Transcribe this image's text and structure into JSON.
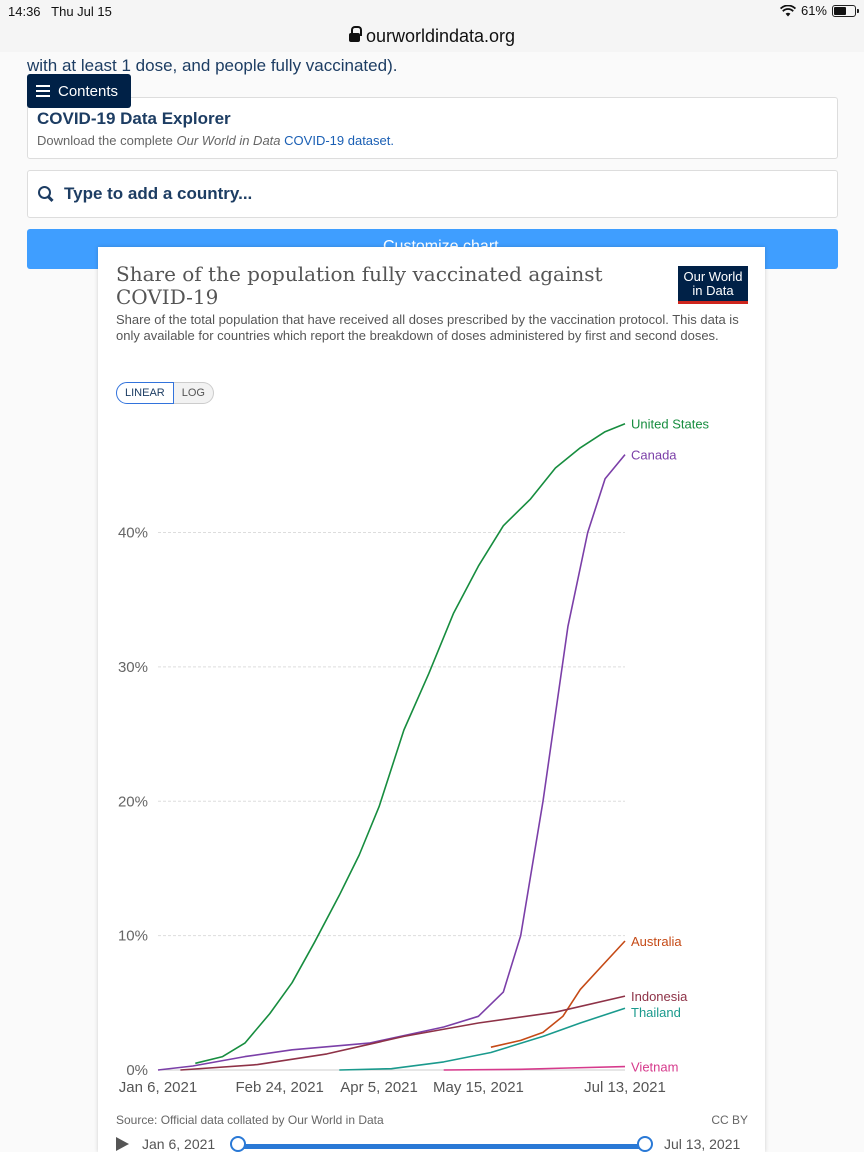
{
  "status_bar": {
    "time": "14:36",
    "date": "Thu Jul 15",
    "battery": "61%",
    "battery_level": 0.61
  },
  "browser": {
    "url": "ourworldindata.org"
  },
  "page": {
    "intro_fragment": "with at least 1 dose, and people fully vaccinated).",
    "contents_label": "Contents",
    "explorer": {
      "title": "COVID-19 Data Explorer",
      "subtitle_prefix": "Download the complete ",
      "subtitle_em": "Our World in Data",
      "subtitle_link": "COVID-19 dataset."
    },
    "search_placeholder": "Type to add a country...",
    "customize_label": "Customize chart"
  },
  "logo": {
    "line1": "Our World",
    "line2": "in Data"
  },
  "scale_options": {
    "linear": "LINEAR",
    "log": "LOG"
  },
  "source": "Source: Official data collated by Our World in Data",
  "license": "CC BY",
  "timeline": {
    "start": "Jan 6, 2021",
    "end": "Jul 13, 2021"
  },
  "chart_data": {
    "type": "line",
    "title": "Share of the population fully vaccinated against COVID-19",
    "subtitle": "Share of the total population that have received all doses prescribed by the vaccination protocol. This data is only available for countries which report the breakdown of doses administered by first and second doses.",
    "y_unit": "%",
    "ylim": [
      0,
      48
    ],
    "yticks": [
      0,
      10,
      20,
      30,
      40
    ],
    "ytick_labels": [
      "0%",
      "10%",
      "20%",
      "30%",
      "40%"
    ],
    "x_range": [
      "2021-01-06",
      "2021-07-13"
    ],
    "xticks": [
      "2021-01-06",
      "2021-02-24",
      "2021-04-05",
      "2021-05-15",
      "2021-07-13"
    ],
    "xtick_labels": [
      "Jan 6, 2021",
      "Feb 24, 2021",
      "Apr 5, 2021",
      "May 15, 2021",
      "Jul 13, 2021"
    ],
    "grid": "horizontal-dashed",
    "legend": "line-end-labels",
    "series": [
      {
        "name": "United States",
        "color": "#178d3f",
        "points": [
          [
            "2021-01-21",
            0.5
          ],
          [
            "2021-02-01",
            1.0
          ],
          [
            "2021-02-10",
            2.0
          ],
          [
            "2021-02-20",
            4.2
          ],
          [
            "2021-03-01",
            6.5
          ],
          [
            "2021-03-10",
            9.5
          ],
          [
            "2021-03-20",
            13.0
          ],
          [
            "2021-03-28",
            16.0
          ],
          [
            "2021-04-05",
            19.6
          ],
          [
            "2021-04-15",
            25.3
          ],
          [
            "2021-04-25",
            29.5
          ],
          [
            "2021-05-05",
            34.0
          ],
          [
            "2021-05-15",
            37.5
          ],
          [
            "2021-05-25",
            40.5
          ],
          [
            "2021-06-05",
            42.5
          ],
          [
            "2021-06-15",
            44.8
          ],
          [
            "2021-06-25",
            46.3
          ],
          [
            "2021-07-05",
            47.5
          ],
          [
            "2021-07-13",
            48.1
          ]
        ]
      },
      {
        "name": "Canada",
        "color": "#7b3fa8",
        "points": [
          [
            "2021-01-06",
            0.0
          ],
          [
            "2021-01-20",
            0.3
          ],
          [
            "2021-02-10",
            1.0
          ],
          [
            "2021-03-01",
            1.5
          ],
          [
            "2021-04-01",
            2.0
          ],
          [
            "2021-05-01",
            3.2
          ],
          [
            "2021-05-15",
            4.0
          ],
          [
            "2021-05-25",
            5.8
          ],
          [
            "2021-06-01",
            10.0
          ],
          [
            "2021-06-10",
            20.0
          ],
          [
            "2021-06-20",
            33.0
          ],
          [
            "2021-06-28",
            40.0
          ],
          [
            "2021-07-05",
            44.0
          ],
          [
            "2021-07-13",
            45.8
          ]
        ]
      },
      {
        "name": "Australia",
        "color": "#c54a16",
        "points": [
          [
            "2021-05-20",
            1.7
          ],
          [
            "2021-06-01",
            2.2
          ],
          [
            "2021-06-10",
            2.8
          ],
          [
            "2021-06-18",
            4.0
          ],
          [
            "2021-06-25",
            6.0
          ],
          [
            "2021-07-05",
            8.0
          ],
          [
            "2021-07-13",
            9.6
          ]
        ]
      },
      {
        "name": "Indonesia",
        "color": "#8e3247",
        "points": [
          [
            "2021-01-15",
            0.0
          ],
          [
            "2021-02-15",
            0.4
          ],
          [
            "2021-03-15",
            1.2
          ],
          [
            "2021-04-15",
            2.5
          ],
          [
            "2021-05-15",
            3.5
          ],
          [
            "2021-06-15",
            4.3
          ],
          [
            "2021-07-13",
            5.5
          ]
        ]
      },
      {
        "name": "Thailand",
        "color": "#1a9a8d",
        "points": [
          [
            "2021-03-20",
            0.0
          ],
          [
            "2021-04-10",
            0.1
          ],
          [
            "2021-05-01",
            0.6
          ],
          [
            "2021-05-20",
            1.3
          ],
          [
            "2021-06-10",
            2.5
          ],
          [
            "2021-06-25",
            3.5
          ],
          [
            "2021-07-13",
            4.6
          ]
        ]
      },
      {
        "name": "Vietnam",
        "color": "#d63a8c",
        "points": [
          [
            "2021-05-01",
            0.0
          ],
          [
            "2021-06-01",
            0.05
          ],
          [
            "2021-06-20",
            0.15
          ],
          [
            "2021-07-13",
            0.25
          ]
        ]
      }
    ]
  }
}
